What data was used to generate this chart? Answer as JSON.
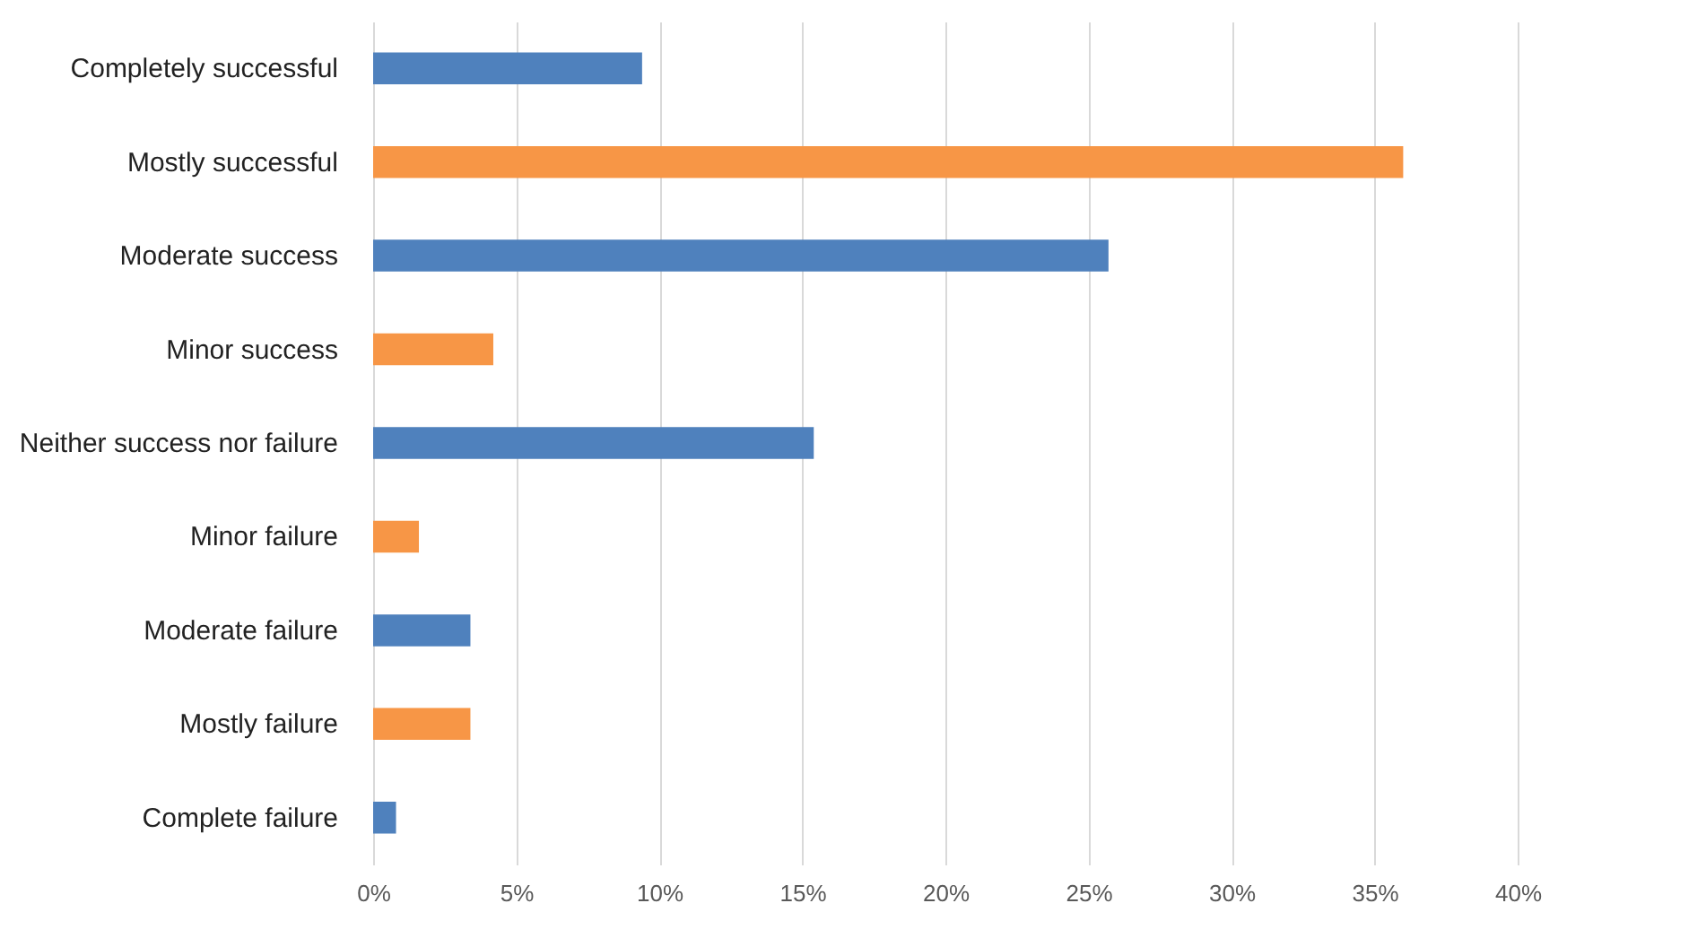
{
  "chart_data": {
    "type": "bar",
    "orientation": "horizontal",
    "categories": [
      "Completely successful",
      "Mostly successful",
      "Moderate success",
      "Minor success",
      "Neither success nor failure",
      "Minor failure",
      "Moderate failure",
      "Mostly failure",
      "Complete failure"
    ],
    "values": [
      9.4,
      36,
      25.7,
      4.2,
      15.4,
      1.6,
      3.4,
      3.4,
      0.8
    ],
    "colors": [
      "#4f81bd",
      "#f79646",
      "#4f81bd",
      "#f79646",
      "#4f81bd",
      "#f79646",
      "#4f81bd",
      "#f79646",
      "#4f81bd"
    ],
    "xlim": [
      0,
      40
    ],
    "xticks": [
      {
        "value": 0,
        "label": "0%"
      },
      {
        "value": 5,
        "label": "5%"
      },
      {
        "value": 10,
        "label": "10%"
      },
      {
        "value": 15,
        "label": "15%"
      },
      {
        "value": 20,
        "label": "20%"
      },
      {
        "value": 25,
        "label": "25%"
      },
      {
        "value": 30,
        "label": "30%"
      },
      {
        "value": 35,
        "label": "35%"
      },
      {
        "value": 40,
        "label": "40%"
      }
    ],
    "grid": "x"
  }
}
